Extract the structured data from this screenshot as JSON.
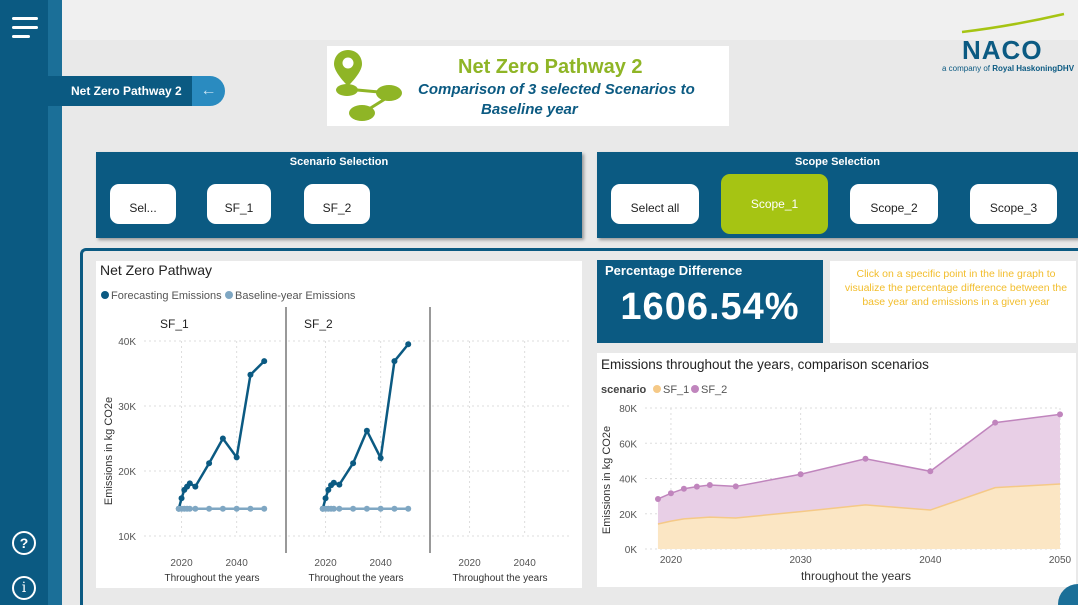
{
  "nav": {
    "help_glyph": "?",
    "info_glyph": "i",
    "menu_icon": "hamburger-icon"
  },
  "page_tab": {
    "label": "Net Zero Pathway 2",
    "back_glyph": "←"
  },
  "title": {
    "line1": "Net Zero Pathway 2",
    "line2": "Comparison of 3 selected Scenarios to",
    "line3": "Baseline year"
  },
  "logo": {
    "name": "NACO",
    "sub_prefix": "a company of ",
    "sub_brand": "Royal HaskoningDHV"
  },
  "scenario_selection": {
    "title": "Scenario Selection",
    "buttons": [
      "Sel...",
      "SF_1",
      "SF_2"
    ]
  },
  "scope_selection": {
    "title": "Scope Selection",
    "buttons": [
      "Select all",
      "Scope_1",
      "Scope_2",
      "Scope_3"
    ],
    "active": "Scope_1"
  },
  "colors": {
    "primary": "#0b5a82",
    "accent_green": "#a6c413",
    "forecast": "#0b5a82",
    "baseline": "#7fa7c3",
    "sf1": "#f5c987",
    "sf2": "#c085bd",
    "hint": "#f2bd2b"
  },
  "pct": {
    "label": "Percentage Difference",
    "value": "1606.54%"
  },
  "hint": "Click on a specific point in the line graph to visualize the percentage difference between the base year and emissions in a given year",
  "chart_data": [
    {
      "type": "line",
      "title": "Net Zero Pathway",
      "legend": [
        "Forecasting Emissions",
        "Baseline-year Emissions"
      ],
      "legend_position": "top-left",
      "ylabel": "Emissions in kg CO2e",
      "xlabel": "Throughout the years",
      "y_ticks": [
        "10K",
        "20K",
        "30K",
        "40K"
      ],
      "ylim": [
        10000,
        40000
      ],
      "x_ticks": [
        2020,
        2040
      ],
      "xlim": [
        2010,
        2055
      ],
      "grid": true,
      "panels": [
        {
          "name": "SF_1",
          "series": [
            {
              "name": "Forecasting Emissions",
              "x": [
                2019,
                2020,
                2021,
                2022,
                2023,
                2025,
                2030,
                2035,
                2040,
                2045,
                2050
              ],
              "y": [
                14200,
                15800,
                17100,
                17600,
                18100,
                17600,
                21200,
                25000,
                22100,
                34800,
                36900
              ]
            },
            {
              "name": "Baseline-year Emissions",
              "x": [
                2019,
                2020,
                2021,
                2022,
                2023,
                2025,
                2030,
                2035,
                2040,
                2045,
                2050
              ],
              "y": [
                14200,
                14200,
                14200,
                14200,
                14200,
                14200,
                14200,
                14200,
                14200,
                14200,
                14200
              ]
            }
          ]
        },
        {
          "name": "SF_2",
          "series": [
            {
              "name": "Forecasting Emissions",
              "x": [
                2019,
                2020,
                2021,
                2022,
                2023,
                2025,
                2030,
                2035,
                2040,
                2045,
                2050
              ],
              "y": [
                14200,
                15800,
                17100,
                17800,
                18200,
                17900,
                21200,
                26200,
                22000,
                36900,
                39500
              ]
            },
            {
              "name": "Baseline-year Emissions",
              "x": [
                2019,
                2020,
                2021,
                2022,
                2023,
                2025,
                2030,
                2035,
                2040,
                2045,
                2050
              ],
              "y": [
                14200,
                14200,
                14200,
                14200,
                14200,
                14200,
                14200,
                14200,
                14200,
                14200,
                14200
              ]
            }
          ]
        },
        {
          "name": "",
          "series": []
        }
      ]
    },
    {
      "type": "area",
      "title": "Emissions throughout the years, comparison scenarios",
      "legend_title": "scenario",
      "legend": [
        "SF_1",
        "SF_2"
      ],
      "legend_position": "top-left",
      "ylabel": "Emissions in kg CO2e",
      "xlabel": "throughout the years",
      "y_ticks": [
        "0K",
        "20K",
        "40K",
        "60K",
        "80K"
      ],
      "ylim": [
        0,
        80000
      ],
      "x_ticks": [
        2020,
        2030,
        2040,
        2050
      ],
      "xlim": [
        2018,
        2050
      ],
      "grid": true,
      "series": [
        {
          "name": "SF_1",
          "x": [
            2019,
            2020,
            2021,
            2022,
            2023,
            2025,
            2030,
            2035,
            2040,
            2045,
            2050
          ],
          "y": [
            14200,
            15800,
            17100,
            17600,
            18100,
            17600,
            21200,
            25000,
            22100,
            34800,
            36900
          ]
        },
        {
          "name": "SF_2",
          "x": [
            2019,
            2020,
            2021,
            2022,
            2023,
            2025,
            2030,
            2035,
            2040,
            2045,
            2050
          ],
          "y": [
            28400,
            31600,
            34200,
            35400,
            36300,
            35500,
            42400,
            51200,
            44100,
            71700,
            76400
          ]
        }
      ]
    }
  ]
}
